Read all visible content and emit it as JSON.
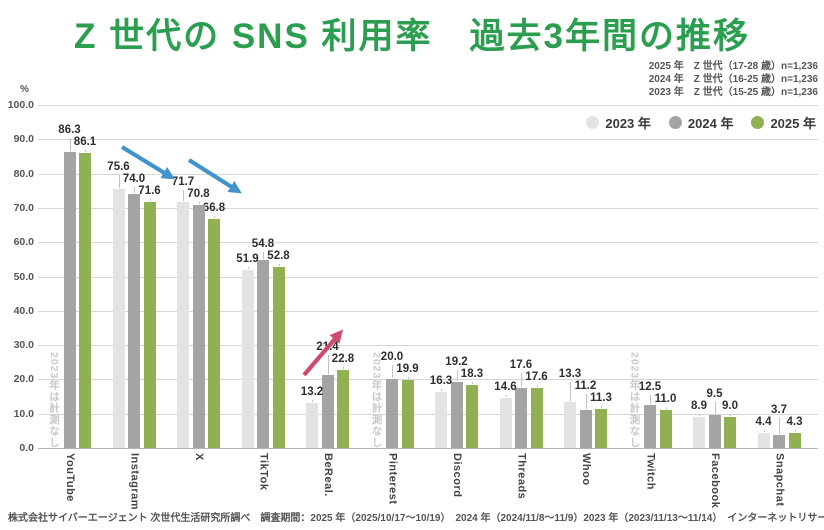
{
  "title": "Z 世代の SNS 利用率　過去3年間の推移",
  "sample_notes": [
    "2025 年　Z 世代（17-28 歳）n=1,236",
    "2024 年　Z 世代（16-25 歳）n=1,236",
    "2023 年　Z 世代（15-25 歳）n=1,236"
  ],
  "legend": [
    {
      "label": "2023 年",
      "color": "#e3e3e1"
    },
    {
      "label": "2024 年",
      "color": "#a5a4a2"
    },
    {
      "label": "2025 年",
      "color": "#90b052"
    }
  ],
  "y_axis": {
    "unit": "%",
    "ticks": [
      "100.0",
      "90.0",
      "80.0",
      "70.0",
      "60.0",
      "50.0",
      "40.0",
      "30.0",
      "20.0",
      "10.0",
      "0.0"
    ],
    "min": 0,
    "max": 100
  },
  "no_data_label": "2023年は計測なし",
  "chart_data": {
    "type": "bar",
    "categories": [
      "YouTube",
      "Instagram",
      "X",
      "TikTok",
      "BeReal.",
      "Pinterest",
      "Discord",
      "Threads",
      "Whoo",
      "Twitch",
      "Facebook",
      "Snapchat"
    ],
    "series": [
      {
        "name": "2023 年",
        "color": "#e3e3e1",
        "values": [
          null,
          75.6,
          71.7,
          51.9,
          13.2,
          null,
          16.3,
          14.6,
          13.3,
          null,
          8.9,
          4.4
        ]
      },
      {
        "name": "2024 年",
        "color": "#a5a4a2",
        "values": [
          86.3,
          74.0,
          70.8,
          54.8,
          21.4,
          20.0,
          19.2,
          17.6,
          11.2,
          12.5,
          9.5,
          3.7
        ]
      },
      {
        "name": "2025 年",
        "color": "#90b052",
        "values": [
          86.1,
          71.6,
          66.8,
          52.8,
          22.8,
          19.9,
          18.3,
          17.6,
          11.3,
          11.0,
          9.0,
          4.3
        ]
      }
    ],
    "ylim": [
      0,
      100
    ],
    "grid": true,
    "legend_position": "top-right",
    "annotations": [
      {
        "type": "arrow",
        "target": "Instagram",
        "direction": "down-right",
        "color": "#4292cc",
        "meaning": "decline"
      },
      {
        "type": "arrow",
        "target": "X",
        "direction": "down-right",
        "color": "#4292cc",
        "meaning": "decline"
      },
      {
        "type": "arrow",
        "target": "BeReal.",
        "direction": "up-right",
        "color": "#d1496b",
        "meaning": "growth"
      }
    ]
  },
  "footer": "株式会社サイバーエージェント 次世代生活研究所調べ　調査期間：2025 年（2025/10/17～10/19）　2024 年（2024/11/8～11/9）2023 年（2023/11/13～11/14）　インターネットリサーチ"
}
